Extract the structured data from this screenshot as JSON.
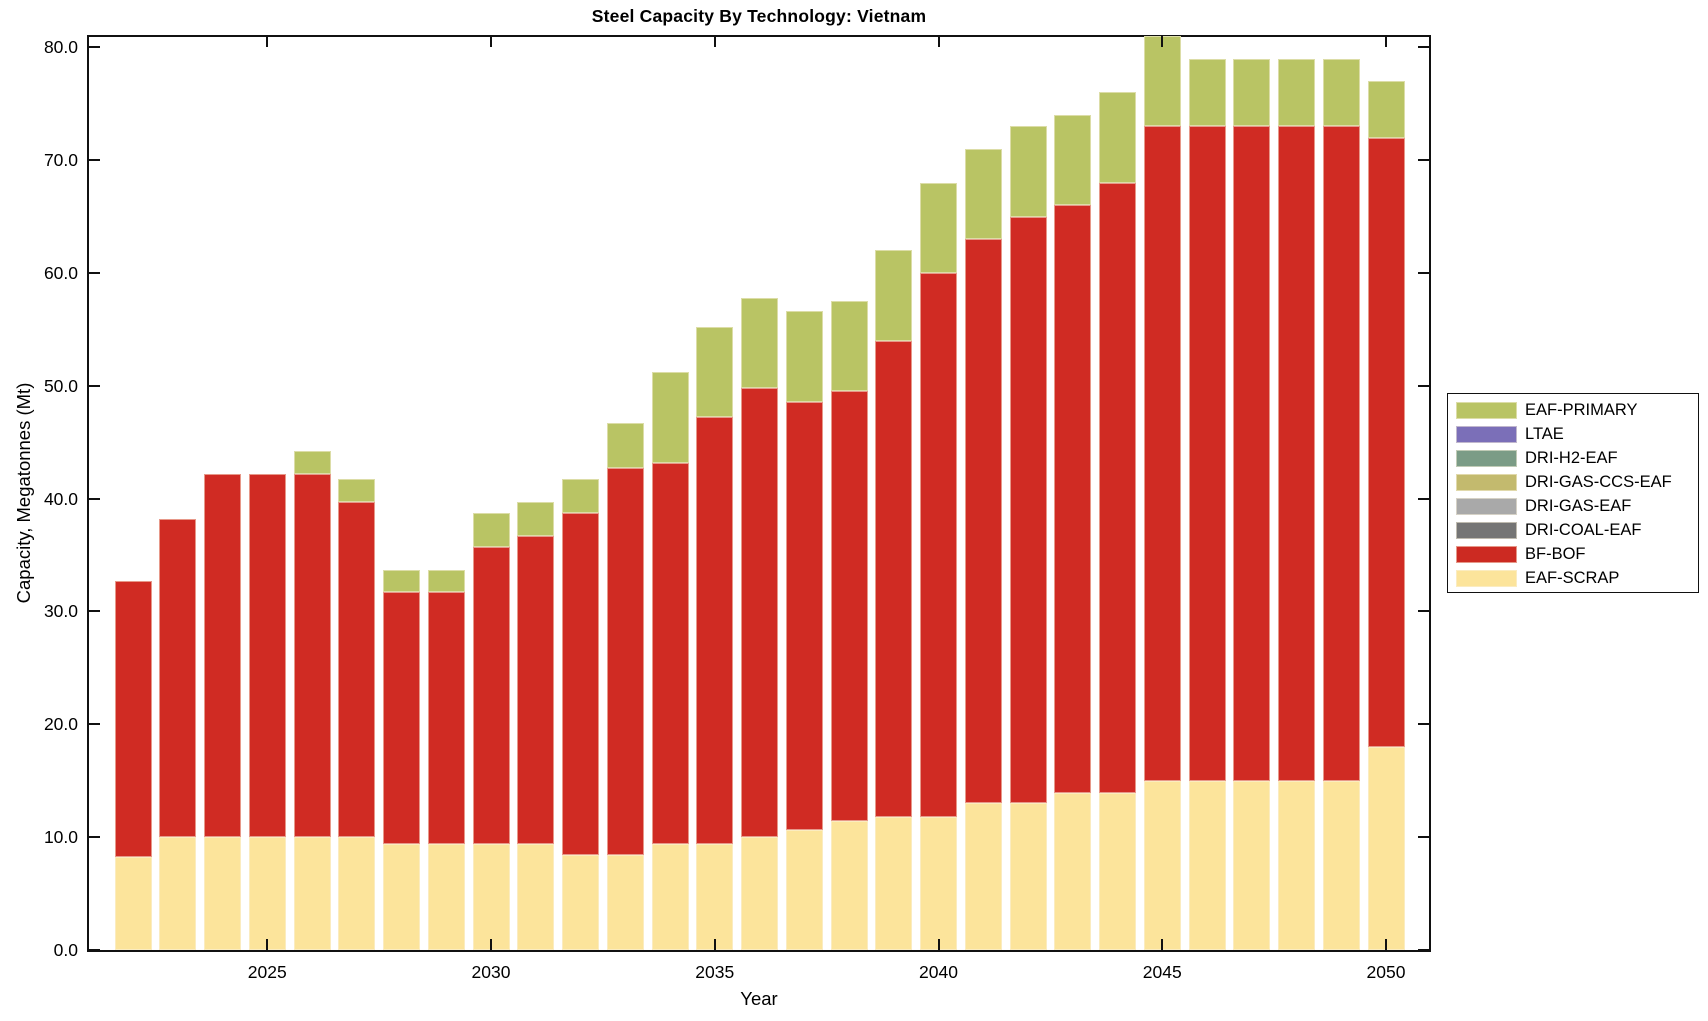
{
  "title": "Steel Capacity By Technology: Vietnam",
  "chart_data": {
    "type": "bar",
    "stacked": true,
    "title": "Steel Capacity By Technology: Vietnam",
    "xlabel": "Year",
    "ylabel": "Capacity, Megatonnes (Mt)",
    "ylim": [
      0,
      81
    ],
    "ytick_values": [
      0,
      10,
      20,
      30,
      40,
      50,
      60,
      70,
      80
    ],
    "ytick_labels": [
      "0.0",
      "10.0",
      "20.0",
      "30.0",
      "40.0",
      "50.0",
      "60.0",
      "70.0",
      "80.0"
    ],
    "x": [
      2022,
      2023,
      2024,
      2025,
      2026,
      2027,
      2028,
      2029,
      2030,
      2031,
      2032,
      2033,
      2034,
      2035,
      2036,
      2037,
      2038,
      2039,
      2040,
      2041,
      2042,
      2043,
      2044,
      2045,
      2046,
      2047,
      2048,
      2049,
      2050
    ],
    "xtick_values": [
      2025,
      2030,
      2035,
      2040,
      2045,
      2050
    ],
    "xtick_labels": [
      "2025",
      "2030",
      "2035",
      "2040",
      "2045",
      "2050"
    ],
    "grid": false,
    "legend_position": "right-outside",
    "series": [
      {
        "name": "EAF-SCRAP",
        "color": "#FCE49B",
        "values": [
          8.2,
          10,
          10,
          10,
          10,
          10,
          9.4,
          9.4,
          9.4,
          9.4,
          8.4,
          8.4,
          9.4,
          9.4,
          10,
          10.6,
          11.4,
          11.8,
          11.8,
          13,
          13,
          13.9,
          13.9,
          15,
          15,
          15,
          15,
          15,
          18
        ]
      },
      {
        "name": "BF-BOF",
        "color": "#D02B23",
        "values": [
          24.5,
          28.2,
          32.2,
          32.2,
          32.2,
          29.7,
          22.3,
          22.3,
          26.3,
          27.3,
          30.3,
          34.3,
          33.8,
          37.8,
          39.8,
          38.0,
          38.1,
          42.2,
          48.2,
          50,
          52,
          52.1,
          54.1,
          58,
          58,
          58,
          58,
          58,
          54
        ]
      },
      {
        "name": "EAF-PRIMARY",
        "color": "#B9C464",
        "values": [
          0,
          0,
          0,
          0,
          2,
          2,
          2,
          2,
          3,
          3,
          3,
          4,
          8,
          8,
          8,
          8,
          8,
          8,
          8,
          8,
          8,
          8,
          8,
          8,
          6,
          6,
          6,
          6,
          5
        ]
      }
    ],
    "legend": [
      {
        "label": "EAF-PRIMARY",
        "color": "#B9C464"
      },
      {
        "label": "LTAE",
        "color": "#7B6FB8"
      },
      {
        "label": "DRI-H2-EAF",
        "color": "#7B9C86"
      },
      {
        "label": "DRI-GAS-CCS-EAF",
        "color": "#C3BA6E"
      },
      {
        "label": "DRI-GAS-EAF",
        "color": "#A9A9A9"
      },
      {
        "label": "DRI-COAL-EAF",
        "color": "#757575"
      },
      {
        "label": "BF-BOF",
        "color": "#CC2A22"
      },
      {
        "label": "EAF-SCRAP",
        "color": "#FCE49B"
      }
    ]
  },
  "colors": {
    "background": "#FFFFFF",
    "axis": "#111111",
    "text": "#000000"
  }
}
